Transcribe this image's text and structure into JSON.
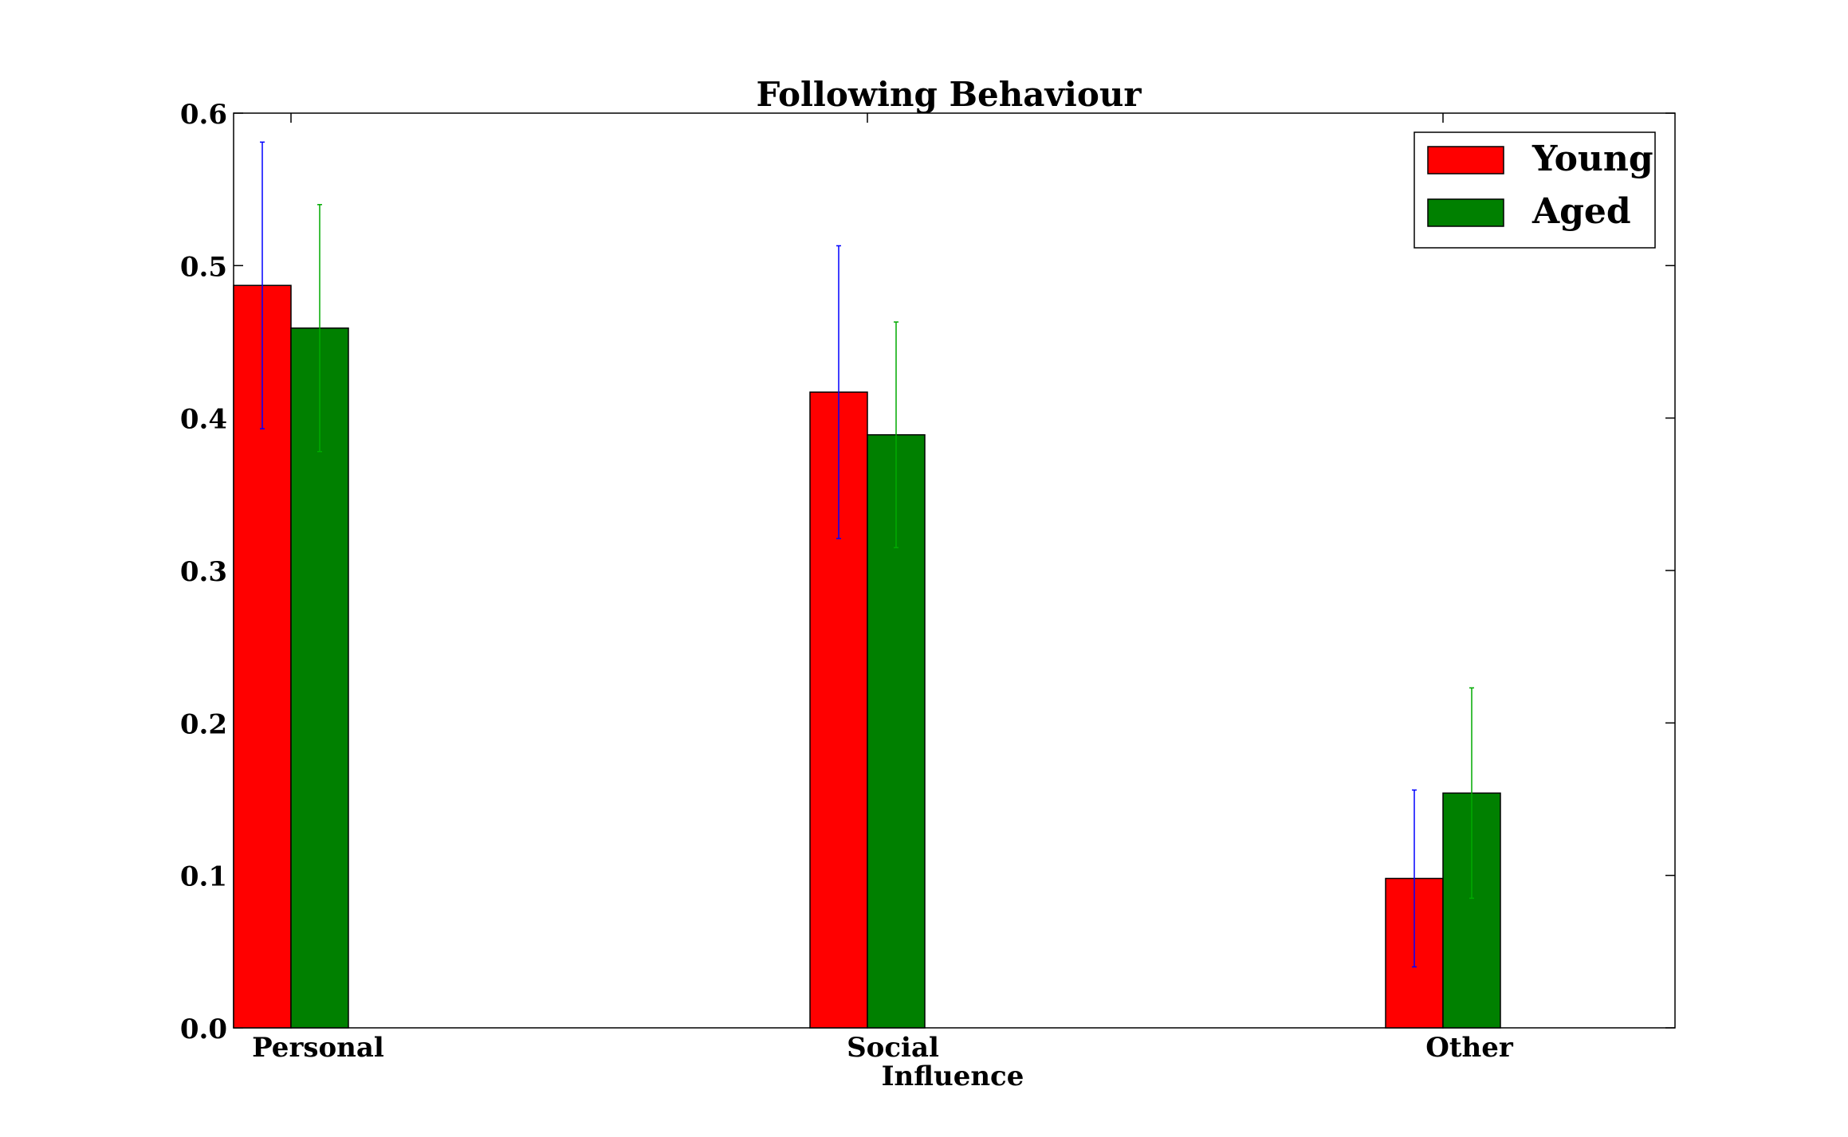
{
  "chart_data": {
    "type": "bar",
    "title": "Following Behaviour",
    "xlabel": "",
    "ylabel": "",
    "ylim": [
      0,
      0.6
    ],
    "yticks": [
      "0.0",
      "0.1",
      "0.2",
      "0.3",
      "0.4",
      "0.5",
      "0.6"
    ],
    "categories": [
      {
        "lines": [
          "Personal"
        ]
      },
      {
        "lines": [
          "Social",
          "Influence"
        ]
      },
      {
        "lines": [
          "Other"
        ]
      }
    ],
    "series": [
      {
        "name": "Young",
        "color": "#ff0000",
        "error_color": "#0000ff",
        "values": [
          0.487,
          0.417,
          0.098
        ],
        "errors": [
          0.094,
          0.096,
          0.058
        ]
      },
      {
        "name": "Aged",
        "color": "#008000",
        "error_color": "#00aa00",
        "values": [
          0.459,
          0.389,
          0.154
        ],
        "errors": [
          0.081,
          0.074,
          0.069
        ]
      }
    ],
    "legend": {
      "position": "top-right"
    },
    "grid": false
  }
}
